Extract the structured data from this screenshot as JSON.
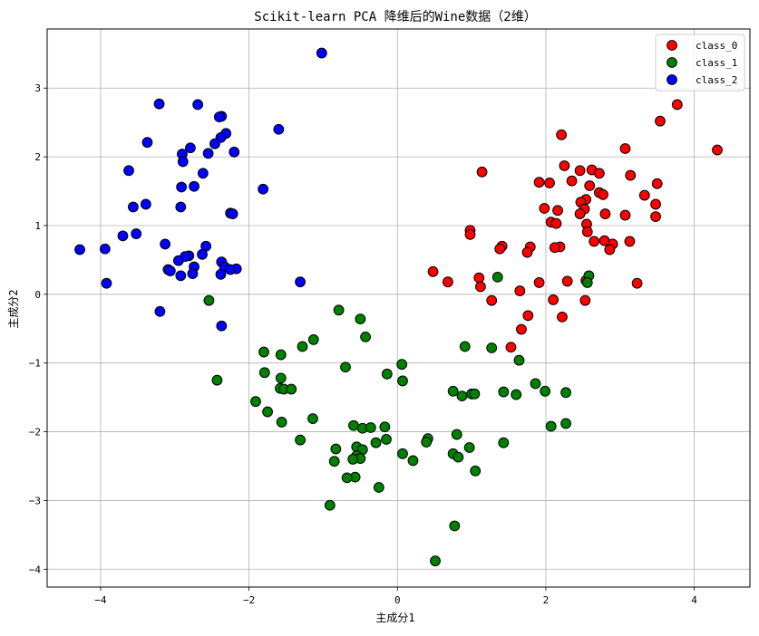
{
  "chart_data": {
    "type": "scatter",
    "title": "Scikit-learn PCA 降维后的Wine数据（2维）",
    "xlabel": "主成分1",
    "ylabel": "主成分2",
    "xlim": [
      -4.72,
      4.75
    ],
    "ylim": [
      -4.26,
      3.86
    ],
    "xticks": [
      -4,
      -2,
      0,
      2,
      4
    ],
    "yticks": [
      -4,
      -3,
      -2,
      -1,
      0,
      1,
      2,
      3
    ],
    "grid": true,
    "legend_position": "top-right",
    "series": [
      {
        "name": "class_0",
        "color": "#ff0000",
        "points": [
          [
            3.77,
            2.76
          ],
          [
            3.54,
            2.52
          ],
          [
            4.31,
            2.1
          ],
          [
            3.07,
            2.12
          ],
          [
            2.21,
            2.32
          ],
          [
            2.62,
            1.81
          ],
          [
            2.25,
            1.87
          ],
          [
            2.46,
            1.8
          ],
          [
            2.72,
            1.76
          ],
          [
            1.14,
            1.78
          ],
          [
            3.14,
            1.73
          ],
          [
            2.35,
            1.65
          ],
          [
            1.91,
            1.63
          ],
          [
            2.05,
            1.62
          ],
          [
            3.5,
            1.61
          ],
          [
            2.59,
            1.58
          ],
          [
            2.72,
            1.48
          ],
          [
            2.77,
            1.45
          ],
          [
            3.33,
            1.44
          ],
          [
            2.54,
            1.38
          ],
          [
            2.47,
            1.34
          ],
          [
            3.48,
            1.31
          ],
          [
            1.98,
            1.25
          ],
          [
            2.52,
            1.24
          ],
          [
            2.16,
            1.22
          ],
          [
            2.46,
            1.17
          ],
          [
            2.8,
            1.17
          ],
          [
            3.07,
            1.15
          ],
          [
            3.48,
            1.13
          ],
          [
            2.07,
            1.05
          ],
          [
            2.55,
            1.02
          ],
          [
            2.14,
            1.03
          ],
          [
            0.98,
            0.93
          ],
          [
            2.56,
            0.91
          ],
          [
            0.98,
            0.87
          ],
          [
            2.65,
            0.77
          ],
          [
            3.13,
            0.77
          ],
          [
            2.79,
            0.78
          ],
          [
            2.9,
            0.73
          ],
          [
            2.86,
            0.65
          ],
          [
            1.41,
            0.7
          ],
          [
            2.19,
            0.69
          ],
          [
            2.12,
            0.68
          ],
          [
            1.79,
            0.69
          ],
          [
            1.38,
            0.66
          ],
          [
            1.75,
            0.61
          ],
          [
            0.48,
            0.33
          ],
          [
            1.1,
            0.24
          ],
          [
            2.54,
            0.2
          ],
          [
            0.68,
            0.18
          ],
          [
            1.91,
            0.17
          ],
          [
            2.29,
            0.19
          ],
          [
            3.23,
            0.16
          ],
          [
            1.12,
            0.11
          ],
          [
            1.65,
            0.05
          ],
          [
            1.27,
            -0.09
          ],
          [
            2.1,
            -0.08
          ],
          [
            2.53,
            -0.09
          ],
          [
            1.76,
            -0.31
          ],
          [
            2.22,
            -0.33
          ],
          [
            1.67,
            -0.51
          ],
          [
            1.53,
            -0.77
          ]
        ]
      },
      {
        "name": "class_1",
        "color": "#008000",
        "points": [
          [
            2.58,
            0.27
          ],
          [
            1.35,
            0.25
          ],
          [
            2.56,
            0.17
          ],
          [
            -2.54,
            -0.09
          ],
          [
            -0.79,
            -0.23
          ],
          [
            -0.5,
            -0.36
          ],
          [
            -0.43,
            -0.62
          ],
          [
            -1.13,
            -0.66
          ],
          [
            -1.28,
            -0.76
          ],
          [
            0.91,
            -0.76
          ],
          [
            1.27,
            -0.78
          ],
          [
            -1.8,
            -0.84
          ],
          [
            -1.57,
            -0.88
          ],
          [
            1.64,
            -0.96
          ],
          [
            0.06,
            -1.02
          ],
          [
            -0.7,
            -1.06
          ],
          [
            -1.79,
            -1.14
          ],
          [
            -0.14,
            -1.16
          ],
          [
            -1.57,
            -1.22
          ],
          [
            -2.43,
            -1.25
          ],
          [
            0.07,
            -1.26
          ],
          [
            1.86,
            -1.3
          ],
          [
            -1.58,
            -1.37
          ],
          [
            -1.53,
            -1.38
          ],
          [
            -1.43,
            -1.38
          ],
          [
            0.75,
            -1.41
          ],
          [
            1.99,
            -1.41
          ],
          [
            1.43,
            -1.42
          ],
          [
            2.27,
            -1.43
          ],
          [
            1.0,
            -1.45
          ],
          [
            1.04,
            -1.45
          ],
          [
            1.6,
            -1.46
          ],
          [
            0.87,
            -1.48
          ],
          [
            -1.91,
            -1.56
          ],
          [
            -1.75,
            -1.71
          ],
          [
            -1.14,
            -1.81
          ],
          [
            -1.56,
            -1.86
          ],
          [
            -0.59,
            -1.91
          ],
          [
            -0.47,
            -1.95
          ],
          [
            -0.36,
            -1.94
          ],
          [
            -0.17,
            -1.93
          ],
          [
            2.07,
            -1.92
          ],
          [
            2.27,
            -1.88
          ],
          [
            0.8,
            -2.04
          ],
          [
            0.41,
            -2.1
          ],
          [
            -0.15,
            -2.11
          ],
          [
            -1.31,
            -2.12
          ],
          [
            0.39,
            -2.15
          ],
          [
            -0.29,
            -2.16
          ],
          [
            1.43,
            -2.16
          ],
          [
            -0.55,
            -2.22
          ],
          [
            0.97,
            -2.23
          ],
          [
            -0.83,
            -2.25
          ],
          [
            -0.47,
            -2.26
          ],
          [
            0.07,
            -2.32
          ],
          [
            0.75,
            -2.32
          ],
          [
            -0.55,
            -2.35
          ],
          [
            -0.5,
            -2.39
          ],
          [
            0.82,
            -2.37
          ],
          [
            -0.6,
            -2.4
          ],
          [
            0.21,
            -2.42
          ],
          [
            -0.85,
            -2.43
          ],
          [
            1.05,
            -2.57
          ],
          [
            -0.57,
            -2.66
          ],
          [
            -0.68,
            -2.67
          ],
          [
            -0.25,
            -2.81
          ],
          [
            -0.91,
            -3.07
          ],
          [
            0.77,
            -3.37
          ],
          [
            0.51,
            -3.88
          ]
        ]
      },
      {
        "name": "class_2",
        "color": "#0000ff",
        "points": [
          [
            -1.02,
            3.51
          ],
          [
            -3.21,
            2.77
          ],
          [
            -2.69,
            2.76
          ],
          [
            -2.37,
            2.59
          ],
          [
            -2.4,
            2.58
          ],
          [
            -1.6,
            2.4
          ],
          [
            -2.31,
            2.34
          ],
          [
            -2.38,
            2.28
          ],
          [
            -2.46,
            2.19
          ],
          [
            -3.37,
            2.21
          ],
          [
            -2.79,
            2.13
          ],
          [
            -2.2,
            2.07
          ],
          [
            -2.9,
            2.04
          ],
          [
            -2.55,
            2.05
          ],
          [
            -2.89,
            1.93
          ],
          [
            -3.62,
            1.8
          ],
          [
            -2.62,
            1.76
          ],
          [
            -1.81,
            1.53
          ],
          [
            -2.74,
            1.57
          ],
          [
            -2.91,
            1.56
          ],
          [
            -3.39,
            1.31
          ],
          [
            -3.56,
            1.27
          ],
          [
            -2.92,
            1.27
          ],
          [
            -2.25,
            1.18
          ],
          [
            -2.22,
            1.17
          ],
          [
            -3.52,
            0.88
          ],
          [
            -3.7,
            0.85
          ],
          [
            -3.13,
            0.73
          ],
          [
            -2.58,
            0.7
          ],
          [
            -4.28,
            0.65
          ],
          [
            -3.94,
            0.66
          ],
          [
            -2.63,
            0.58
          ],
          [
            -2.81,
            0.56
          ],
          [
            -2.86,
            0.55
          ],
          [
            -2.95,
            0.49
          ],
          [
            -2.37,
            0.47
          ],
          [
            -2.74,
            0.4
          ],
          [
            -2.33,
            0.4
          ],
          [
            -2.17,
            0.37
          ],
          [
            -3.09,
            0.36
          ],
          [
            -2.25,
            0.36
          ],
          [
            -3.06,
            0.34
          ],
          [
            -2.76,
            0.3
          ],
          [
            -2.38,
            0.29
          ],
          [
            -2.92,
            0.27
          ],
          [
            -1.31,
            0.18
          ],
          [
            -3.92,
            0.16
          ],
          [
            -3.2,
            -0.25
          ],
          [
            -2.37,
            -0.46
          ]
        ]
      }
    ]
  }
}
